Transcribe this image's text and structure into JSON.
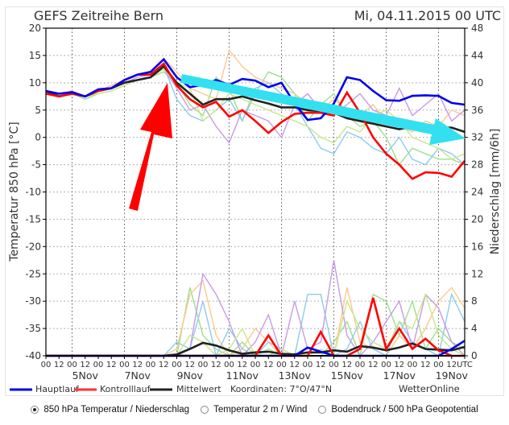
{
  "chart_data": {
    "type": "line",
    "title": "GEFS Zeitreihe Bern",
    "run_label": "Mi, 04.11.2015 00 UTC",
    "ylabel_left": "Temperatur 850 hPa [°C]",
    "ylabel_right": "Niederschlag [mm/6h]",
    "ylim_left": [
      -40,
      20
    ],
    "ylim_right": [
      0,
      48
    ],
    "left_ticks": [
      "20",
      "15",
      "10",
      "5",
      "0",
      "-5",
      "-10",
      "-15",
      "-20",
      "-25",
      "-30",
      "-35",
      "-40"
    ],
    "right_ticks": [
      "48",
      "44",
      "40",
      "36",
      "32",
      "28",
      "24",
      "20",
      "16",
      "12",
      "8",
      "4",
      "0"
    ],
    "hour_ticks": [
      "00",
      "12"
    ],
    "utc_label": "UTC",
    "date_labels": [
      "5Nov",
      "7Nov",
      "9Nov",
      "11Nov",
      "13Nov",
      "15Nov",
      "17Nov",
      "19Nov"
    ],
    "x_start": "2015-11-04 00 UTC",
    "x_step_hours": 12,
    "grid": true,
    "series": [
      {
        "name": "Hauptlauf",
        "color": "#0000ee",
        "width": 2.6,
        "temperature": [
          8.5,
          8,
          8.3,
          7.5,
          8.8,
          9,
          10.5,
          11.5,
          12,
          14.3,
          11,
          9.2,
          9.6,
          10.5,
          9.6,
          10.7,
          10.4,
          9.2,
          10,
          6.2,
          3.2,
          3.5,
          6.2,
          11,
          10.5,
          8.5,
          6.8,
          6.7,
          7.6,
          7.7,
          7.6,
          6.3,
          6
        ],
        "precipitation": [
          0,
          0,
          0,
          0,
          0,
          0,
          0,
          0,
          0,
          0,
          0,
          0,
          0,
          0,
          0,
          0,
          0,
          0,
          0,
          0,
          1.2,
          0.6,
          0,
          0,
          0,
          0,
          0,
          0,
          0,
          0,
          0,
          1,
          2.2
        ]
      },
      {
        "name": "Kontrolllauf",
        "color": "#ff0000",
        "width": 2.6,
        "temperature": [
          8,
          7.5,
          8,
          7.5,
          8.5,
          9,
          10.5,
          11.5,
          11.5,
          13.5,
          9.5,
          7,
          5.5,
          6.5,
          3.8,
          5,
          3,
          0.8,
          2.8,
          4.3,
          4.5,
          4.5,
          4,
          8.2,
          4.5,
          0,
          -3,
          -5,
          -7.6,
          -6.4,
          -6.5,
          -7.2,
          -4.3
        ],
        "precipitation": [
          0,
          0,
          0,
          0,
          0,
          0,
          0,
          0,
          0,
          0,
          0,
          0,
          0,
          0,
          0,
          0,
          0,
          3,
          0,
          0,
          0,
          3.5,
          0,
          0,
          1,
          8.5,
          1,
          4,
          1,
          2.5,
          0.8,
          0,
          0
        ]
      },
      {
        "name": "Mittelwert",
        "color": "#222222",
        "width": 2.6,
        "temperature": [
          8.5,
          7.5,
          8,
          7.5,
          8.5,
          9,
          10,
          10.5,
          11,
          13,
          10,
          8,
          6,
          7,
          7,
          7.5,
          6.8,
          6.2,
          5.5,
          5.5,
          5,
          4.8,
          4.5,
          3.5,
          3,
          2.5,
          2,
          1.5,
          2,
          1.5,
          1.8,
          1.8,
          1
        ],
        "precipitation": [
          0,
          0,
          0,
          0,
          0,
          0,
          0,
          0,
          0,
          0,
          0.2,
          1,
          1.9,
          1.5,
          0.8,
          0.3,
          0.5,
          0.6,
          0.3,
          0.2,
          0.5,
          0.5,
          0.8,
          0.6,
          1.4,
          1.2,
          0.8,
          1.2,
          1.8,
          1,
          0.9,
          0.8,
          1.3
        ]
      }
    ],
    "members": [
      {
        "color": "#9be08a",
        "temperature": [
          8,
          7.5,
          8,
          7,
          8,
          8.5,
          9.5,
          10.5,
          11,
          12,
          10,
          6,
          4,
          11,
          9,
          3,
          8,
          12,
          11,
          8,
          3,
          6,
          8,
          4,
          2,
          3,
          0,
          -5,
          -2,
          -3,
          -4,
          -4,
          -5
        ],
        "precipitation": [
          0,
          0,
          0,
          0,
          0,
          0,
          0,
          0,
          0,
          0,
          0,
          10,
          3,
          1,
          0,
          2,
          0,
          1,
          0,
          0,
          0,
          0,
          2,
          5,
          0,
          9,
          8,
          3,
          8,
          1,
          4,
          2,
          1
        ]
      },
      {
        "color": "#fcc98a",
        "temperature": [
          8.5,
          8,
          8.5,
          7.5,
          8.5,
          9.5,
          10.5,
          11.5,
          12,
          14.5,
          12,
          9,
          8,
          7,
          16,
          13,
          11,
          10,
          9,
          8,
          6,
          5,
          7,
          5,
          4,
          6,
          3,
          2,
          1,
          3,
          2,
          5,
          4
        ],
        "precipitation": [
          0,
          0,
          0,
          0,
          0,
          0,
          0,
          0,
          0,
          0,
          1,
          9,
          11,
          3,
          0,
          1,
          4,
          2,
          0,
          0,
          0,
          0,
          0,
          10,
          2,
          1,
          0,
          3,
          1,
          4,
          8,
          10,
          7
        ]
      },
      {
        "color": "#8ccbf0",
        "temperature": [
          8,
          7.5,
          8,
          7.5,
          8.5,
          9,
          10,
          11,
          11.5,
          13,
          7,
          4,
          3,
          5,
          7,
          3,
          9,
          10,
          8,
          6,
          2,
          -2,
          -3,
          1,
          0,
          -2,
          -3,
          0,
          -4,
          -5,
          -2,
          -3,
          -5
        ],
        "precipitation": [
          0,
          0,
          0,
          0,
          0,
          0,
          0,
          0,
          0,
          0,
          2,
          1,
          8,
          0,
          4,
          1,
          0,
          2,
          1,
          0,
          9,
          9,
          0,
          1,
          5,
          1,
          0,
          5,
          2,
          1,
          0,
          9,
          5
        ]
      },
      {
        "color": "#c79ae6",
        "temperature": [
          8,
          7.5,
          8,
          7.5,
          8.5,
          9,
          10,
          11,
          11.5,
          12.5,
          9,
          5,
          6,
          2,
          -1,
          5,
          4,
          3,
          0,
          6,
          8,
          5,
          4,
          6,
          8,
          5,
          4,
          9,
          4,
          6,
          8,
          3,
          5
        ],
        "precipitation": [
          0,
          0,
          0,
          0,
          0,
          0,
          0,
          0,
          0,
          0,
          0,
          1,
          12,
          9,
          5,
          0,
          2,
          6,
          0,
          8,
          1,
          2,
          14,
          3,
          0,
          2,
          5,
          8,
          1,
          9,
          7,
          2,
          0
        ]
      },
      {
        "color": "#c8e68a",
        "temperature": [
          8,
          7.5,
          8,
          7.5,
          8,
          8.5,
          9.5,
          10.5,
          11,
          12.5,
          10,
          9,
          3,
          5,
          8,
          7,
          6,
          5,
          4,
          3,
          2,
          0,
          -1,
          2,
          1,
          4,
          5,
          3,
          0,
          -1,
          -2,
          -4,
          -3
        ],
        "precipitation": [
          0,
          0,
          0,
          0,
          0,
          0,
          0,
          0,
          0,
          0,
          0,
          3,
          2,
          0,
          1,
          4,
          0,
          0,
          1,
          0,
          0,
          1,
          0,
          8,
          4,
          2,
          1,
          5,
          4,
          9,
          3,
          1,
          0
        ]
      }
    ],
    "legend": {
      "placement": "bottom",
      "items": [
        "Hauptlauf",
        "Kontrolllauf",
        "Mittelwert"
      ]
    },
    "coordinates": "Koordinaten:  7°O/47°N",
    "source": "WetterOnline",
    "annotations": [
      {
        "type": "arrow",
        "color": "#ff0000"
      },
      {
        "type": "arrow",
        "color": "#33e0f0"
      }
    ]
  },
  "options": {
    "selected": 0,
    "items": [
      "850 hPa Temperatur / Niederschlag",
      "Temperatur 2 m / Wind",
      "Bodendruck / 500 hPa Geopotential"
    ]
  }
}
